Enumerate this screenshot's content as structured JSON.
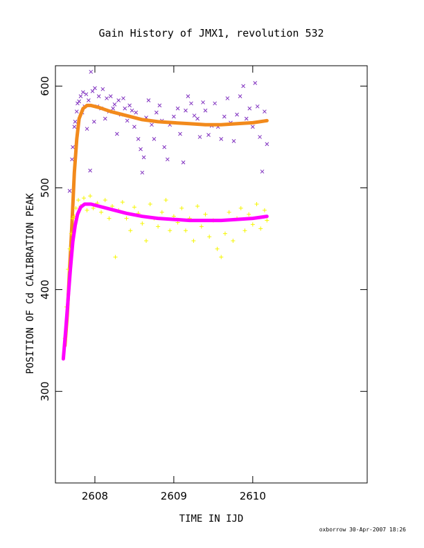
{
  "colors": {
    "purple": "#7f2fbf",
    "orange": "#f28a1c",
    "yellow": "#f5f500",
    "magenta": "#ff00ff",
    "axis": "#000000"
  },
  "chart_data": {
    "type": "scatter",
    "title": "Gain History of JMX1, revolution 532",
    "xlabel": "TIME IN IJD",
    "ylabel": "POSITION OF Cd CALIBRATION PEAK",
    "xlim": [
      2607.5,
      2611.45
    ],
    "ylim": [
      210,
      620
    ],
    "xticks": [
      2608,
      2609,
      2610
    ],
    "yticks": [
      300,
      400,
      500,
      600
    ],
    "grid": false,
    "legend": "none",
    "series": [
      {
        "marker": "x",
        "color": "#7f2fbf",
        "values": [
          [
            2607.68,
            497
          ],
          [
            2607.71,
            528
          ],
          [
            2607.72,
            540
          ],
          [
            2607.74,
            560
          ],
          [
            2607.75,
            565
          ],
          [
            2607.77,
            575
          ],
          [
            2607.78,
            583
          ],
          [
            2607.8,
            585
          ],
          [
            2607.82,
            590
          ],
          [
            2607.84,
            574
          ],
          [
            2607.85,
            594
          ],
          [
            2607.87,
            580
          ],
          [
            2607.89,
            592
          ],
          [
            2607.9,
            558
          ],
          [
            2607.92,
            586
          ],
          [
            2607.94,
            517
          ],
          [
            2607.95,
            614
          ],
          [
            2607.97,
            595
          ],
          [
            2607.99,
            565
          ],
          [
            2608.0,
            598
          ],
          [
            2608.03,
            580
          ],
          [
            2608.05,
            590
          ],
          [
            2608.08,
            578
          ],
          [
            2608.1,
            597
          ],
          [
            2608.13,
            568
          ],
          [
            2608.15,
            588
          ],
          [
            2608.18,
            575
          ],
          [
            2608.2,
            590
          ],
          [
            2608.23,
            578
          ],
          [
            2608.25,
            582
          ],
          [
            2608.28,
            553
          ],
          [
            2608.3,
            586
          ],
          [
            2608.33,
            572
          ],
          [
            2608.36,
            588
          ],
          [
            2608.38,
            578
          ],
          [
            2608.41,
            566
          ],
          [
            2608.44,
            581
          ],
          [
            2608.47,
            576
          ],
          [
            2608.5,
            560
          ],
          [
            2608.52,
            574
          ],
          [
            2608.55,
            548
          ],
          [
            2608.58,
            538
          ],
          [
            2608.6,
            515
          ],
          [
            2608.62,
            530
          ],
          [
            2608.65,
            569
          ],
          [
            2608.68,
            586
          ],
          [
            2608.72,
            562
          ],
          [
            2608.75,
            548
          ],
          [
            2608.78,
            574
          ],
          [
            2608.82,
            581
          ],
          [
            2608.85,
            566
          ],
          [
            2608.88,
            540
          ],
          [
            2608.92,
            528
          ],
          [
            2608.95,
            562
          ],
          [
            2609.0,
            570
          ],
          [
            2609.05,
            578
          ],
          [
            2609.08,
            553
          ],
          [
            2609.12,
            525
          ],
          [
            2609.15,
            576
          ],
          [
            2609.18,
            590
          ],
          [
            2609.22,
            583
          ],
          [
            2609.26,
            571
          ],
          [
            2609.3,
            568
          ],
          [
            2609.33,
            550
          ],
          [
            2609.37,
            584
          ],
          [
            2609.4,
            576
          ],
          [
            2609.44,
            552
          ],
          [
            2609.48,
            561
          ],
          [
            2609.52,
            583
          ],
          [
            2609.56,
            560
          ],
          [
            2609.6,
            548
          ],
          [
            2609.64,
            570
          ],
          [
            2609.68,
            588
          ],
          [
            2609.72,
            564
          ],
          [
            2609.76,
            546
          ],
          [
            2609.8,
            572
          ],
          [
            2609.84,
            590
          ],
          [
            2609.88,
            600
          ],
          [
            2609.92,
            568
          ],
          [
            2609.96,
            578
          ],
          [
            2610.0,
            560
          ],
          [
            2610.03,
            603
          ],
          [
            2610.06,
            580
          ],
          [
            2610.09,
            550
          ],
          [
            2610.12,
            516
          ],
          [
            2610.15,
            575
          ],
          [
            2610.18,
            543
          ]
        ]
      },
      {
        "marker": "line",
        "color": "#f28a1c",
        "values": [
          [
            2607.62,
            345
          ],
          [
            2607.65,
            375
          ],
          [
            2607.68,
            420
          ],
          [
            2607.71,
            465
          ],
          [
            2607.74,
            515
          ],
          [
            2607.77,
            548
          ],
          [
            2607.8,
            568
          ],
          [
            2607.85,
            578
          ],
          [
            2607.9,
            581
          ],
          [
            2607.95,
            581
          ],
          [
            2608.05,
            579
          ],
          [
            2608.2,
            575
          ],
          [
            2608.4,
            571
          ],
          [
            2608.6,
            567
          ],
          [
            2608.8,
            565
          ],
          [
            2609.0,
            564
          ],
          [
            2609.2,
            563
          ],
          [
            2609.4,
            562
          ],
          [
            2609.6,
            562
          ],
          [
            2609.8,
            563
          ],
          [
            2610.0,
            564
          ],
          [
            2610.18,
            566
          ]
        ]
      },
      {
        "marker": "+",
        "color": "#f5f500",
        "values": [
          [
            2607.62,
            352
          ],
          [
            2607.64,
            383
          ],
          [
            2607.66,
            420
          ],
          [
            2607.68,
            440
          ],
          [
            2607.7,
            455
          ],
          [
            2607.72,
            470
          ],
          [
            2607.74,
            472
          ],
          [
            2607.76,
            480
          ],
          [
            2607.79,
            488
          ],
          [
            2607.82,
            482
          ],
          [
            2607.86,
            490
          ],
          [
            2607.9,
            478
          ],
          [
            2607.94,
            492
          ],
          [
            2607.98,
            480
          ],
          [
            2608.03,
            485
          ],
          [
            2608.08,
            476
          ],
          [
            2608.13,
            488
          ],
          [
            2608.18,
            470
          ],
          [
            2608.22,
            482
          ],
          [
            2608.26,
            432
          ],
          [
            2608.3,
            478
          ],
          [
            2608.35,
            486
          ],
          [
            2608.4,
            470
          ],
          [
            2608.45,
            458
          ],
          [
            2608.5,
            481
          ],
          [
            2608.55,
            475
          ],
          [
            2608.6,
            465
          ],
          [
            2608.65,
            448
          ],
          [
            2608.7,
            484
          ],
          [
            2608.75,
            470
          ],
          [
            2608.8,
            462
          ],
          [
            2608.85,
            476
          ],
          [
            2608.9,
            488
          ],
          [
            2608.95,
            458
          ],
          [
            2609.0,
            472
          ],
          [
            2609.05,
            466
          ],
          [
            2609.1,
            480
          ],
          [
            2609.15,
            458
          ],
          [
            2609.2,
            470
          ],
          [
            2609.25,
            448
          ],
          [
            2609.3,
            482
          ],
          [
            2609.35,
            462
          ],
          [
            2609.4,
            474
          ],
          [
            2609.45,
            452
          ],
          [
            2609.5,
            468
          ],
          [
            2609.55,
            440
          ],
          [
            2609.6,
            432
          ],
          [
            2609.65,
            455
          ],
          [
            2609.7,
            476
          ],
          [
            2609.75,
            448
          ],
          [
            2609.8,
            470
          ],
          [
            2609.85,
            480
          ],
          [
            2609.9,
            458
          ],
          [
            2609.95,
            474
          ],
          [
            2610.0,
            464
          ],
          [
            2610.05,
            484
          ],
          [
            2610.1,
            460
          ],
          [
            2610.15,
            478
          ],
          [
            2610.18,
            468
          ]
        ]
      },
      {
        "marker": "line",
        "color": "#ff00ff",
        "values": [
          [
            2607.6,
            332
          ],
          [
            2607.63,
            360
          ],
          [
            2607.66,
            390
          ],
          [
            2607.69,
            420
          ],
          [
            2607.72,
            447
          ],
          [
            2607.75,
            463
          ],
          [
            2607.78,
            474
          ],
          [
            2607.82,
            481
          ],
          [
            2607.87,
            484
          ],
          [
            2607.95,
            484
          ],
          [
            2608.05,
            482
          ],
          [
            2608.2,
            479
          ],
          [
            2608.4,
            475
          ],
          [
            2608.6,
            472
          ],
          [
            2608.8,
            470
          ],
          [
            2609.0,
            469
          ],
          [
            2609.2,
            468
          ],
          [
            2609.4,
            468
          ],
          [
            2609.6,
            468
          ],
          [
            2609.8,
            469
          ],
          [
            2610.0,
            470
          ],
          [
            2610.18,
            472
          ]
        ]
      }
    ]
  },
  "footer": "oxborrow 30-Apr-2007 18:26"
}
